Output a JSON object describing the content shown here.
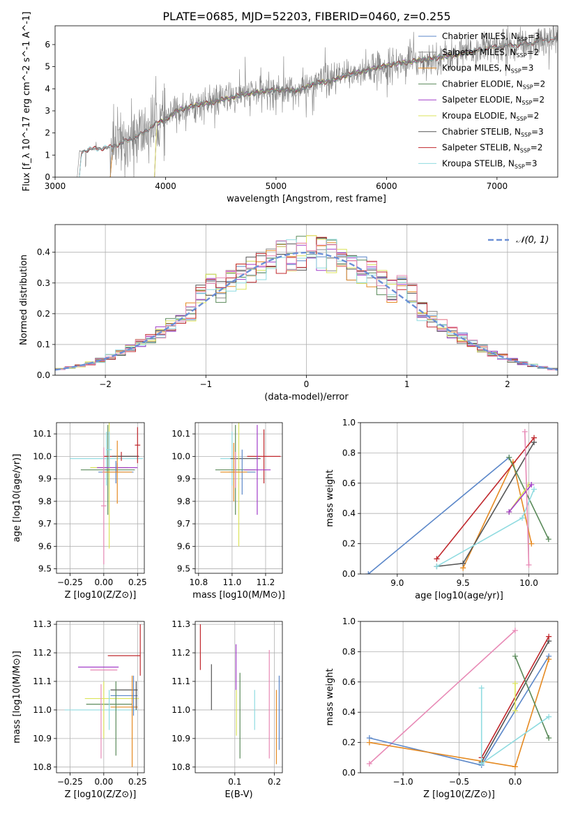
{
  "figure": {
    "title": "PLATE=0685, MJD=52203, FIBERID=0460, z=0.255"
  },
  "chart_data": [
    {
      "id": "spectrum",
      "type": "line",
      "xlabel": "wavelength [Angstrom, rest frame]",
      "ylabel": "Flux [f_λ 10^-17 erg cm^-2 s^-1 A^-1]",
      "xlim": [
        3000,
        7550
      ],
      "ylim": [
        0,
        6.85
      ],
      "xticks": [
        3000,
        4000,
        5000,
        6000,
        7000
      ],
      "yticks": [
        0,
        1,
        2,
        3,
        4,
        5,
        6
      ],
      "data_color": "#808080",
      "data_continuum": [
        [
          3200,
          0.0
        ],
        [
          3220,
          1.15
        ],
        [
          3300,
          1.25
        ],
        [
          3400,
          1.3
        ],
        [
          3500,
          1.35
        ],
        [
          3600,
          1.55
        ],
        [
          3700,
          1.75
        ],
        [
          3800,
          2.0
        ],
        [
          3900,
          2.4
        ],
        [
          4000,
          2.6
        ],
        [
          4100,
          3.0
        ],
        [
          4200,
          3.15
        ],
        [
          4300,
          3.3
        ],
        [
          4400,
          3.35
        ],
        [
          4500,
          3.5
        ],
        [
          4600,
          3.6
        ],
        [
          4700,
          3.75
        ],
        [
          4800,
          3.8
        ],
        [
          4900,
          3.9
        ],
        [
          5000,
          3.95
        ],
        [
          5100,
          3.95
        ],
        [
          5200,
          3.9
        ],
        [
          5300,
          4.15
        ],
        [
          5400,
          4.3
        ],
        [
          5500,
          4.35
        ],
        [
          5600,
          4.55
        ],
        [
          5700,
          4.7
        ],
        [
          5800,
          4.8
        ],
        [
          5900,
          4.95
        ],
        [
          6000,
          5.05
        ],
        [
          6100,
          5.15
        ],
        [
          6200,
          5.2
        ],
        [
          6300,
          5.3
        ],
        [
          6400,
          5.35
        ],
        [
          6500,
          5.45
        ],
        [
          6600,
          5.5
        ],
        [
          6700,
          5.6
        ],
        [
          6800,
          5.7
        ],
        [
          6900,
          5.85
        ],
        [
          7000,
          5.9
        ],
        [
          7100,
          5.95
        ],
        [
          7200,
          6.0
        ],
        [
          7300,
          6.05
        ],
        [
          7400,
          6.2
        ],
        [
          7550,
          6.25
        ]
      ],
      "model_spans": [
        {
          "name": "Chabrier MILES, N_SSP=3",
          "range": [
            3500,
            7420
          ],
          "color": "#5b87c9"
        },
        {
          "name": "Salpeter MILES, N_SSP=2",
          "range": [
            3500,
            7420
          ],
          "color": "#8a8a8a"
        },
        {
          "name": "Kroupa MILES, N_SSP=3",
          "range": [
            3500,
            7420
          ],
          "color": "#e58a22"
        },
        {
          "name": "Chabrier ELODIE, N_SSP=2",
          "range": [
            3900,
            6800
          ],
          "color": "#5a8a5a"
        },
        {
          "name": "Salpeter ELODIE, N_SSP=2",
          "range": [
            3900,
            6800
          ],
          "color": "#a23ec9"
        },
        {
          "name": "Kroupa ELODIE, N_SSP=2",
          "range": [
            3900,
            6800
          ],
          "color": "#dbe35a"
        },
        {
          "name": "Chabrier STELIB, N_SSP=3",
          "range": [
            3220,
            7550
          ],
          "color": "#555555"
        },
        {
          "name": "Salpeter STELIB, N_SSP=2",
          "range": [
            3220,
            7550
          ],
          "color": "#c0282d"
        },
        {
          "name": "Kroupa STELIB, N_SSP=3",
          "range": [
            3220,
            7550
          ],
          "color": "#8fdbe0"
        }
      ],
      "legend": "upper-right"
    },
    {
      "id": "residuals",
      "type": "histogram",
      "xlabel": "(data-model)/error",
      "ylabel": "Normed distribution",
      "xlim": [
        -2.5,
        2.5
      ],
      "ylim": [
        0,
        0.49
      ],
      "xticks": [
        -2,
        -1,
        0,
        1,
        2
      ],
      "yticks": [
        0.0,
        0.1,
        0.2,
        0.3,
        0.4
      ],
      "reference": {
        "label": "𝒩(0, 1)",
        "mean": 0,
        "sigma": 1,
        "color": "#6b8fd6"
      },
      "legend": "upper-right"
    },
    {
      "id": "age-vs-Z",
      "type": "errorbar",
      "xlabel": "Z [log10(Z/Z⊙)]",
      "ylabel": "age [log10(age/yr)]",
      "xlim": [
        -0.35,
        0.3
      ],
      "ylim": [
        9.48,
        10.15
      ],
      "xticks": [
        -0.25,
        0.0,
        0.25
      ],
      "xtick_labels": [
        "−0.25",
        "0.00",
        "0.25"
      ],
      "yticks": [
        9.5,
        9.6,
        9.7,
        9.8,
        9.9,
        10.0,
        10.1
      ],
      "points": [
        {
          "c": "#8fdbe0",
          "x": 0.02,
          "xerr": 0.27,
          "y": 9.99,
          "yerr": 0.12
        },
        {
          "c": "#c0282d",
          "x": 0.13,
          "xerr": 0.13,
          "y": 10.0,
          "yerr": 0.02
        },
        {
          "c": "#555555",
          "x": 0.16,
          "xerr": 0.1,
          "y": 10.0,
          "yerr": 0.0
        },
        {
          "c": "#dbe35a",
          "x": 0.04,
          "xerr": 0.14,
          "y": 9.95,
          "yerr": 0.36
        },
        {
          "c": "#5a8a5a",
          "x": 0.03,
          "xerr": 0.2,
          "y": 9.94,
          "yerr": 0.2
        },
        {
          "c": "#a23ec9",
          "x": 0.1,
          "xerr": 0.15,
          "y": 9.95,
          "yerr": 0.02
        },
        {
          "c": "#5b87c9",
          "x": 0.09,
          "xerr": 0.13,
          "y": 9.93,
          "yerr": 0.05
        },
        {
          "c": "#e58a22",
          "x": 0.1,
          "xerr": 0.11,
          "y": 9.93,
          "yerr": 0.14
        },
        {
          "c": "#e88ab6",
          "x": 0.0,
          "xerr": 0.02,
          "y": 9.78,
          "yerr": 0.26
        },
        {
          "c": "#8fdbe0",
          "x": 0.04,
          "xerr": 0.02,
          "y": 10.03,
          "yerr": 0.08
        },
        {
          "c": "#c0282d",
          "x": 0.25,
          "xerr": 0.02,
          "y": 10.05,
          "yerr": 0.08
        }
      ]
    },
    {
      "id": "age-vs-mass",
      "type": "errorbar",
      "xlabel": "mass [log10(M/M⊙)]",
      "ylabel": "",
      "xlim": [
        10.78,
        11.3
      ],
      "ylim": [
        9.48,
        10.15
      ],
      "xticks": [
        10.8,
        11.0,
        11.2
      ],
      "yticks": [
        9.5,
        9.6,
        9.7,
        9.8,
        9.9,
        10.0,
        10.1
      ],
      "points": [
        {
          "c": "#8fdbe0",
          "x": 11.0,
          "xerr": 0.07,
          "y": 9.99,
          "yerr": 0.12
        },
        {
          "c": "#c0282d",
          "x": 11.19,
          "xerr": 0.1,
          "y": 10.0,
          "yerr": 0.12
        },
        {
          "c": "#555555",
          "x": 11.08,
          "xerr": 0.09,
          "y": 9.99,
          "yerr": 0.0
        },
        {
          "c": "#dbe35a",
          "x": 11.04,
          "xerr": 0.1,
          "y": 9.93,
          "yerr": 0.33
        },
        {
          "c": "#5a8a5a",
          "x": 11.02,
          "xerr": 0.12,
          "y": 9.94,
          "yerr": 0.2
        },
        {
          "c": "#a23ec9",
          "x": 11.15,
          "xerr": 0.08,
          "y": 9.94,
          "yerr": 0.2
        },
        {
          "c": "#5b87c9",
          "x": 11.06,
          "xerr": 0.08,
          "y": 9.93,
          "yerr": 0.1
        },
        {
          "c": "#e58a22",
          "x": 11.01,
          "xerr": 0.08,
          "y": 9.93,
          "yerr": 0.13
        },
        {
          "c": "#e88ab6",
          "x": 11.02,
          "xerr": 0.0,
          "y": 9.94,
          "yerr": 0.08
        }
      ]
    },
    {
      "id": "massweight-vs-age",
      "type": "line",
      "xlabel": "age [log10(age/yr)]",
      "ylabel": "mass weight",
      "xlim": [
        8.72,
        10.22
      ],
      "ylim": [
        0,
        1.0
      ],
      "xticks": [
        9.0,
        9.5,
        10.0
      ],
      "yticks": [
        0.0,
        0.2,
        0.4,
        0.6,
        0.8,
        1.0
      ],
      "series": [
        {
          "c": "#5b87c9",
          "x": [
            8.78,
            9.85
          ],
          "y": [
            0.0,
            0.77
          ]
        },
        {
          "c": "#e58a22",
          "x": [
            9.5,
            9.88,
            10.02
          ],
          "y": [
            0.04,
            0.74,
            0.2
          ]
        },
        {
          "c": "#555555",
          "x": [
            9.3,
            9.5,
            10.04
          ],
          "y": [
            0.05,
            0.07,
            0.87
          ]
        },
        {
          "c": "#c0282d",
          "x": [
            9.3,
            10.04
          ],
          "y": [
            0.1,
            0.9
          ]
        },
        {
          "c": "#5a8a5a",
          "x": [
            9.85,
            10.15
          ],
          "y": [
            0.77,
            0.23
          ]
        },
        {
          "c": "#dbe35a",
          "x": [
            9.85,
            10.0
          ],
          "y": [
            0.41,
            0.59
          ]
        },
        {
          "c": "#a23ec9",
          "x": [
            9.85,
            10.02
          ],
          "y": [
            0.41,
            0.59
          ]
        },
        {
          "c": "#8fdbe0",
          "x": [
            9.3,
            9.95,
            10.04
          ],
          "y": [
            0.05,
            0.37,
            0.56
          ]
        },
        {
          "c": "#e88ab6",
          "x": [
            9.97,
            10.0
          ],
          "y": [
            0.94,
            0.06
          ]
        }
      ]
    },
    {
      "id": "mass-vs-Z",
      "type": "errorbar",
      "xlabel": "Z [log10(Z/Z⊙)]",
      "ylabel": "mass [log10(M/M⊙)]",
      "xlim": [
        -0.35,
        0.3
      ],
      "ylim": [
        10.78,
        11.31
      ],
      "xticks": [
        -0.25,
        0.0,
        0.25
      ],
      "xtick_labels": [
        "−0.25",
        "0.00",
        "0.25"
      ],
      "yticks": [
        10.8,
        10.9,
        11.0,
        11.1,
        11.2,
        11.3
      ],
      "points": [
        {
          "c": "#8fdbe0",
          "x": -0.02,
          "xerr": 0.27,
          "y": 11.0,
          "yerr": 0.0
        },
        {
          "c": "#c0282d",
          "x": 0.15,
          "xerr": 0.12,
          "y": 11.19,
          "yerr": 0.0
        },
        {
          "c": "#555555",
          "x": 0.15,
          "xerr": 0.1,
          "y": 11.07,
          "yerr": 0.0
        },
        {
          "c": "#dbe35a",
          "x": 0.06,
          "xerr": 0.2,
          "y": 11.04,
          "yerr": 0.0
        },
        {
          "c": "#5a8a5a",
          "x": 0.04,
          "xerr": 0.17,
          "y": 11.02,
          "yerr": 0.0
        },
        {
          "c": "#a23ec9",
          "x": -0.04,
          "xerr": 0.15,
          "y": 11.15,
          "yerr": 0.0
        },
        {
          "c": "#5b87c9",
          "x": 0.15,
          "xerr": 0.1,
          "y": 11.05,
          "yerr": 0.0
        },
        {
          "c": "#e58a22",
          "x": 0.15,
          "xerr": 0.1,
          "y": 11.01,
          "yerr": 0.0
        },
        {
          "c": "#e88ab6",
          "x": 0.0,
          "xerr": 0.1,
          "y": 11.14,
          "yerr": 0.0
        },
        {
          "c": "#e88ab6",
          "x": -0.02,
          "xerr": 0.0,
          "y": 10.96,
          "yerr": 0.13
        },
        {
          "c": "#dbe35a",
          "x": 0.0,
          "xerr": 0.0,
          "y": 11.0,
          "yerr": 0.1
        },
        {
          "c": "#5a8a5a",
          "x": 0.09,
          "xerr": 0.0,
          "y": 10.97,
          "yerr": 0.13
        },
        {
          "c": "#e58a22",
          "x": 0.21,
          "xerr": 0.0,
          "y": 10.96,
          "yerr": 0.16
        },
        {
          "c": "#5b87c9",
          "x": 0.22,
          "xerr": 0.0,
          "y": 11.05,
          "yerr": 0.07
        },
        {
          "c": "#8fdbe0",
          "x": 0.04,
          "xerr": 0.0,
          "y": 11.0,
          "yerr": 0.07
        },
        {
          "c": "#c0282d",
          "x": 0.27,
          "xerr": 0.0,
          "y": 11.21,
          "yerr": 0.09
        },
        {
          "c": "#555555",
          "x": 0.24,
          "xerr": 0.0,
          "y": 11.05,
          "yerr": 0.05
        }
      ]
    },
    {
      "id": "mass-vs-ebv",
      "type": "errorbar",
      "xlabel": "E(B-V)",
      "ylabel": "",
      "xlim": [
        0.0,
        0.22
      ],
      "ylim": [
        10.78,
        11.31
      ],
      "xticks": [
        0.1,
        0.2
      ],
      "yticks": [
        10.8,
        10.9,
        11.0,
        11.1,
        11.2,
        11.3
      ],
      "points": [
        {
          "c": "#c0282d",
          "x": 0.013,
          "xerr": 0.0,
          "y": 11.22,
          "yerr": 0.08
        },
        {
          "c": "#555555",
          "x": 0.041,
          "xerr": 0.0,
          "y": 11.08,
          "yerr": 0.08
        },
        {
          "c": "#a23ec9",
          "x": 0.103,
          "xerr": 0.0,
          "y": 11.15,
          "yerr": 0.08
        },
        {
          "c": "#dbe35a",
          "x": 0.104,
          "xerr": 0.0,
          "y": 10.99,
          "yerr": 0.08
        },
        {
          "c": "#5a8a5a",
          "x": 0.113,
          "xerr": 0.0,
          "y": 10.98,
          "yerr": 0.15
        },
        {
          "c": "#8fdbe0",
          "x": 0.15,
          "xerr": 0.0,
          "y": 11.0,
          "yerr": 0.07
        },
        {
          "c": "#e88ab6",
          "x": 0.187,
          "xerr": 0.0,
          "y": 11.02,
          "yerr": 0.19
        },
        {
          "c": "#e58a22",
          "x": 0.205,
          "xerr": 0.0,
          "y": 10.94,
          "yerr": 0.13
        },
        {
          "c": "#5b87c9",
          "x": 0.212,
          "xerr": 0.0,
          "y": 10.99,
          "yerr": 0.13
        }
      ]
    },
    {
      "id": "massweight-vs-Z",
      "type": "line",
      "xlabel": "Z [log10(Z/Z⊙)]",
      "ylabel": "mass weight",
      "xlim": [
        -1.38,
        0.38
      ],
      "ylim": [
        0,
        1.0
      ],
      "xticks": [
        -1.0,
        -0.5,
        0.0
      ],
      "xtick_labels": [
        "−1.0",
        "−0.5",
        "0.0"
      ],
      "yticks": [
        0.0,
        0.2,
        0.4,
        0.6,
        0.8,
        1.0
      ],
      "series": [
        {
          "c": "#e88ab6",
          "x": [
            -1.3,
            0.0
          ],
          "y": [
            0.06,
            0.94
          ]
        },
        {
          "c": "#5b87c9",
          "x": [
            -1.3,
            -0.3,
            0.3
          ],
          "y": [
            0.23,
            0.05,
            0.77
          ]
        },
        {
          "c": "#e58a22",
          "x": [
            -1.3,
            0.0,
            0.3
          ],
          "y": [
            0.2,
            0.04,
            0.75
          ]
        },
        {
          "c": "#555555",
          "x": [
            -0.3,
            0.3
          ],
          "y": [
            0.07,
            0.87
          ]
        },
        {
          "c": "#c0282d",
          "x": [
            -0.3,
            0.3
          ],
          "y": [
            0.1,
            0.9
          ]
        },
        {
          "c": "#5a8a5a",
          "x": [
            0.0,
            0.3
          ],
          "y": [
            0.77,
            0.23
          ]
        },
        {
          "c": "#dbe35a",
          "x": [
            0.0,
            0.0
          ],
          "y": [
            0.41,
            0.59
          ]
        },
        {
          "c": "#8fdbe0",
          "x": [
            -0.3,
            -0.3
          ],
          "y": [
            0.06,
            0.56
          ]
        },
        {
          "c": "#8fdbe0",
          "x": [
            -0.3,
            0.3
          ],
          "y": [
            0.06,
            0.37
          ]
        }
      ]
    }
  ]
}
